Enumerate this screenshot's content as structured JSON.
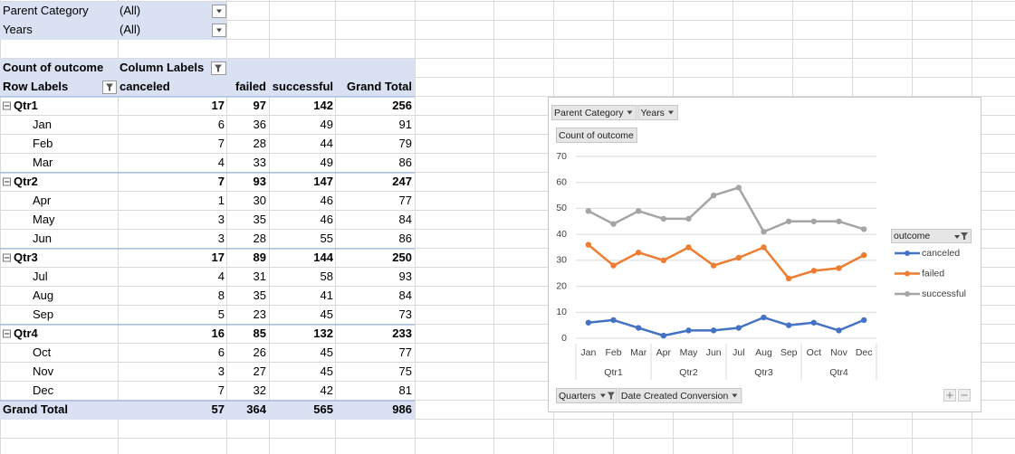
{
  "filters": [
    {
      "label": "Parent Category",
      "value": "(All)"
    },
    {
      "label": "Years",
      "value": "(All)"
    }
  ],
  "pivot": {
    "corner": "Count of outcome",
    "column_labels": "Column Labels",
    "row_labels": "Row Labels",
    "columns": [
      "canceled",
      "failed",
      "successful",
      "Grand Total"
    ],
    "groups": [
      {
        "name": "Qtr1",
        "values": [
          17,
          97,
          142,
          256
        ],
        "rows": [
          {
            "label": "Jan",
            "values": [
              6,
              36,
              49,
              91
            ]
          },
          {
            "label": "Feb",
            "values": [
              7,
              28,
              44,
              79
            ]
          },
          {
            "label": "Mar",
            "values": [
              4,
              33,
              49,
              86
            ]
          }
        ]
      },
      {
        "name": "Qtr2",
        "values": [
          7,
          93,
          147,
          247
        ],
        "rows": [
          {
            "label": "Apr",
            "values": [
              1,
              30,
              46,
              77
            ]
          },
          {
            "label": "May",
            "values": [
              3,
              35,
              46,
              84
            ]
          },
          {
            "label": "Jun",
            "values": [
              3,
              28,
              55,
              86
            ]
          }
        ]
      },
      {
        "name": "Qtr3",
        "values": [
          17,
          89,
          144,
          250
        ],
        "rows": [
          {
            "label": "Jul",
            "values": [
              4,
              31,
              58,
              93
            ]
          },
          {
            "label": "Aug",
            "values": [
              8,
              35,
              41,
              84
            ]
          },
          {
            "label": "Sep",
            "values": [
              5,
              23,
              45,
              73
            ]
          }
        ]
      },
      {
        "name": "Qtr4",
        "values": [
          16,
          85,
          132,
          233
        ],
        "rows": [
          {
            "label": "Oct",
            "values": [
              6,
              26,
              45,
              77
            ]
          },
          {
            "label": "Nov",
            "values": [
              3,
              27,
              45,
              75
            ]
          },
          {
            "label": "Dec",
            "values": [
              7,
              32,
              42,
              81
            ]
          }
        ]
      }
    ],
    "grand_total": {
      "label": "Grand Total",
      "values": [
        57,
        364,
        565,
        986
      ]
    }
  },
  "chart_data": {
    "type": "line",
    "filter_buttons": [
      "Parent Category",
      "Years"
    ],
    "value_button": "Count of outcome",
    "axis_buttons": [
      "Quarters",
      "Date Created Conversion"
    ],
    "categories": [
      "Jan",
      "Feb",
      "Mar",
      "Apr",
      "May",
      "Jun",
      "Jul",
      "Aug",
      "Sep",
      "Oct",
      "Nov",
      "Dec"
    ],
    "x_groups": [
      "Qtr1",
      "Qtr2",
      "Qtr3",
      "Qtr4"
    ],
    "ylim": [
      0,
      70
    ],
    "yticks": [
      0,
      10,
      20,
      30,
      40,
      50,
      60,
      70
    ],
    "grid": true,
    "legend": "right",
    "legend_title": "outcome",
    "series": [
      {
        "name": "canceled",
        "color": "#4472c4",
        "values": [
          6,
          7,
          4,
          1,
          3,
          3,
          4,
          8,
          5,
          6,
          3,
          7
        ]
      },
      {
        "name": "failed",
        "color": "#ed7d31",
        "values": [
          36,
          28,
          33,
          30,
          35,
          28,
          31,
          35,
          23,
          26,
          27,
          32
        ]
      },
      {
        "name": "successful",
        "color": "#a5a5a5",
        "values": [
          49,
          44,
          49,
          46,
          46,
          55,
          58,
          41,
          45,
          45,
          45,
          42
        ]
      }
    ]
  }
}
